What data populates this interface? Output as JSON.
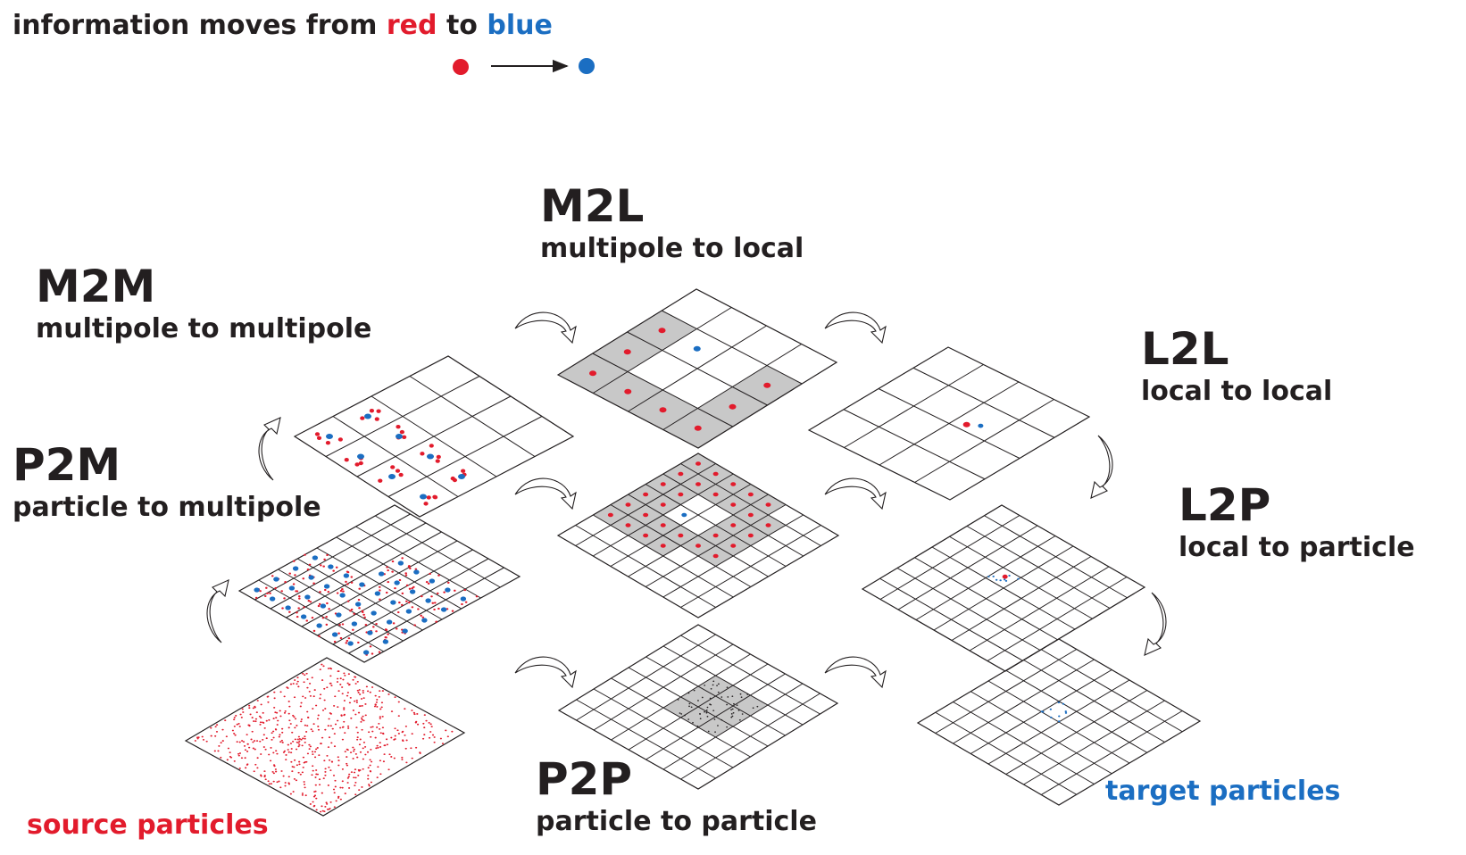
{
  "header": {
    "text_prefix": "information moves from ",
    "word_red": "red",
    "text_middle": " to ",
    "word_blue": "blue"
  },
  "colors": {
    "red": "#e21b2c",
    "blue": "#1b6ec2",
    "ink": "#231f20",
    "shade": "#c8c8c8"
  },
  "labels": {
    "m2l": {
      "code": "M2L",
      "desc": "multipole to local"
    },
    "m2m": {
      "code": "M2M",
      "desc": "multipole to multipole"
    },
    "l2l": {
      "code": "L2L",
      "desc": "local to local"
    },
    "p2m": {
      "code": "P2M",
      "desc": "particle to multipole"
    },
    "l2p": {
      "code": "L2P",
      "desc": "local to particle"
    },
    "p2p": {
      "code": "P2P",
      "desc": "particle to particle"
    },
    "source": "source particles",
    "target": "target particles"
  }
}
